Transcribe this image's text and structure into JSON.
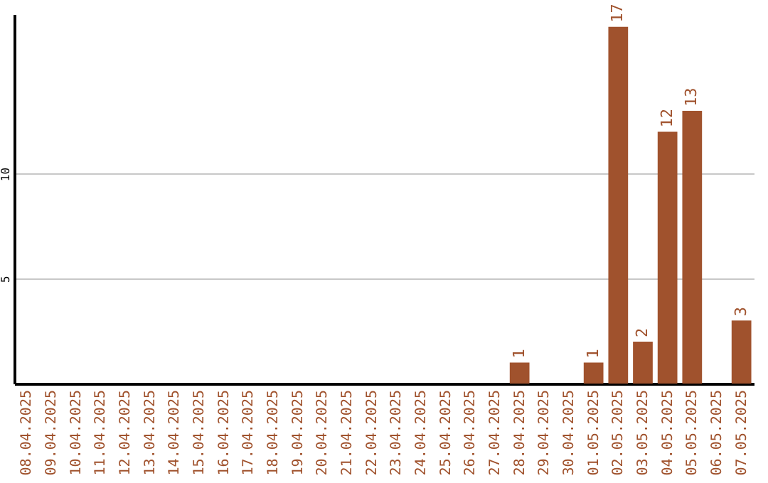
{
  "chart_data": {
    "type": "bar",
    "categories": [
      "08.04.2025",
      "09.04.2025",
      "10.04.2025",
      "11.04.2025",
      "12.04.2025",
      "13.04.2025",
      "14.04.2025",
      "15.04.2025",
      "16.04.2025",
      "17.04.2025",
      "18.04.2025",
      "19.04.2025",
      "20.04.2025",
      "21.04.2025",
      "22.04.2025",
      "23.04.2025",
      "24.04.2025",
      "25.04.2025",
      "26.04.2025",
      "27.04.2025",
      "28.04.2025",
      "29.04.2025",
      "30.04.2025",
      "01.05.2025",
      "02.05.2025",
      "03.05.2025",
      "04.05.2025",
      "05.05.2025",
      "06.05.2025",
      "07.05.2025"
    ],
    "values": [
      0,
      0,
      0,
      0,
      0,
      0,
      0,
      0,
      0,
      0,
      0,
      0,
      0,
      0,
      0,
      0,
      0,
      0,
      0,
      0,
      1,
      0,
      0,
      1,
      17,
      2,
      12,
      13,
      0,
      3
    ],
    "value_labels": [
      null,
      null,
      null,
      null,
      null,
      null,
      null,
      null,
      null,
      null,
      null,
      null,
      null,
      null,
      null,
      null,
      null,
      null,
      null,
      null,
      "1",
      null,
      null,
      "1",
      "17",
      "2",
      "12",
      "13",
      null,
      "3"
    ],
    "color": "#a0522d",
    "ylim": [
      0,
      17.6
    ],
    "yticks": [
      5,
      10
    ],
    "grid": "y"
  }
}
